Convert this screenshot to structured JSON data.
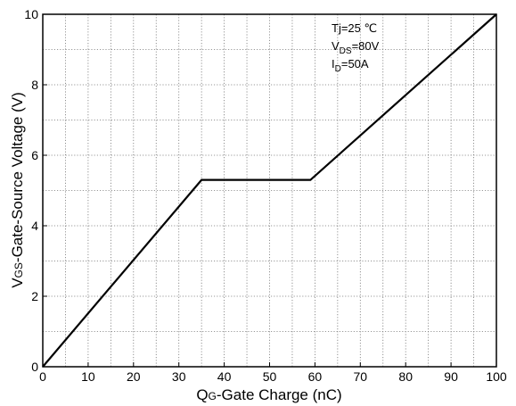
{
  "chart_data": {
    "type": "line",
    "title": "",
    "xlabel": {
      "main": "Q",
      "sub": "G",
      "rest": "-Gate Charge (nC)"
    },
    "ylabel": {
      "main": "V",
      "sub": "GS",
      "rest": "-Gate-Source Voltage (V)"
    },
    "xlim": [
      0,
      100
    ],
    "ylim": [
      0,
      10
    ],
    "x_ticks": [
      0,
      10,
      20,
      30,
      40,
      50,
      60,
      70,
      80,
      90,
      100
    ],
    "y_ticks": [
      0,
      2,
      4,
      6,
      8,
      10
    ],
    "x_minor_step": 5,
    "y_minor_step": 1,
    "grid": true,
    "grid_style": "dotted",
    "line_color": "#000000",
    "series": [
      {
        "x": [
          0,
          35,
          59,
          100
        ],
        "y": [
          0,
          5.3,
          5.3,
          10
        ]
      }
    ],
    "annotations": [
      {
        "main": "Tj=25 ℃",
        "sub": "",
        "rest": ""
      },
      {
        "main": "V",
        "sub": "DS",
        "rest": "=80V"
      },
      {
        "main": "I",
        "sub": "D",
        "rest": "=50A"
      }
    ]
  }
}
